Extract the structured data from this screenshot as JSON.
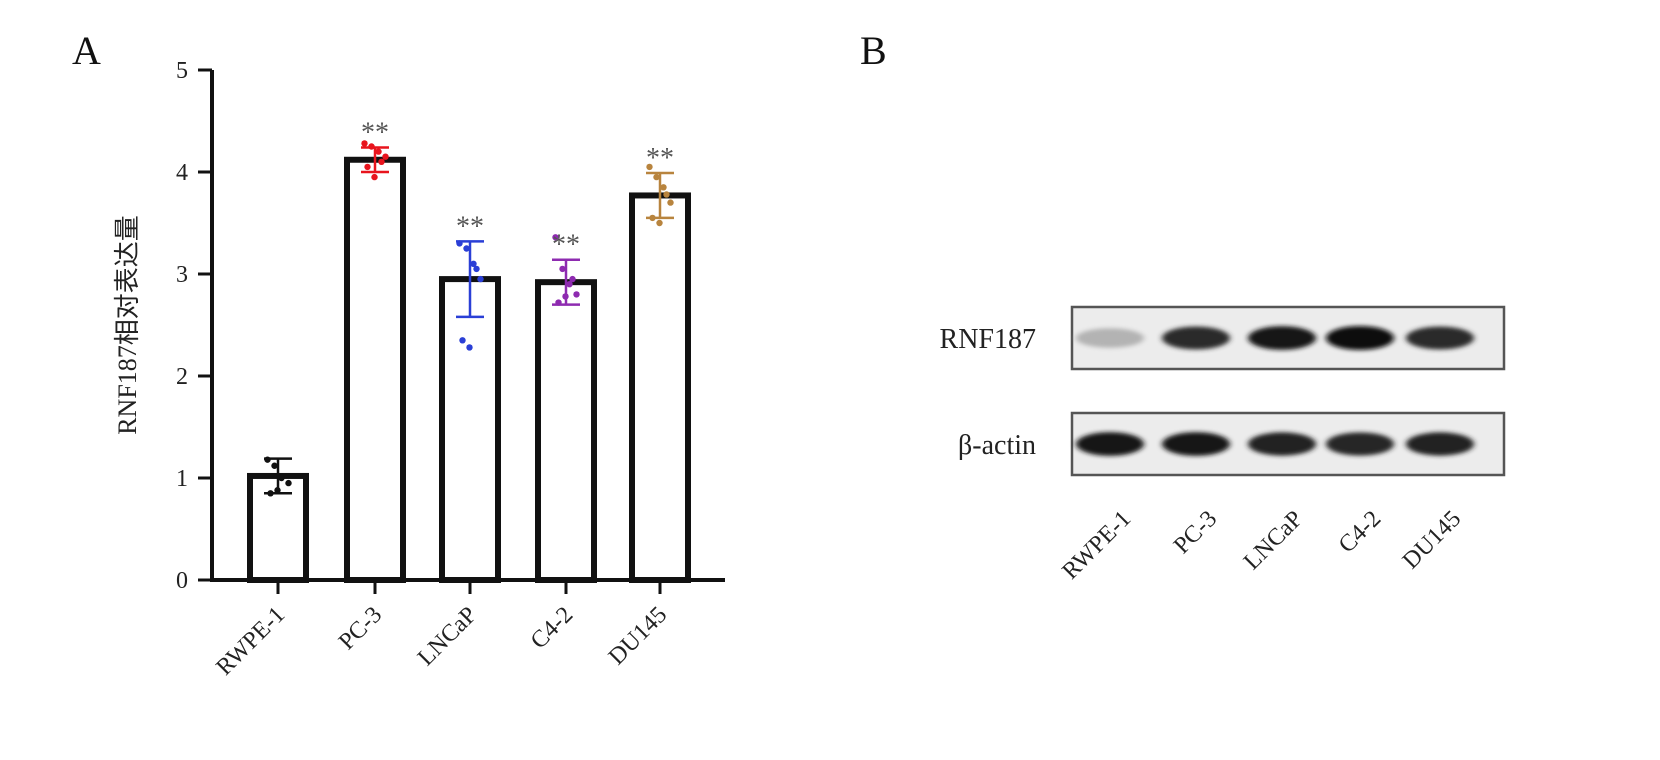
{
  "panels": {
    "a_letter": "A",
    "b_letter": "B"
  },
  "chart_data": {
    "type": "bar",
    "ylabel": "RNF187相对表达量",
    "xlabel": "",
    "ylim": [
      0,
      5
    ],
    "yticks": [
      0,
      1,
      2,
      3,
      4,
      5
    ],
    "categories": [
      "RWPE-1",
      "PC-3",
      "LNCaP",
      "C4-2",
      "DU145"
    ],
    "values": [
      1.02,
      4.12,
      2.95,
      2.92,
      3.77
    ],
    "errors": [
      0.17,
      0.12,
      0.37,
      0.22,
      0.22
    ],
    "significance": [
      "",
      "**",
      "**",
      "**",
      "**"
    ],
    "point_colors": [
      "#111111",
      "#e8141d",
      "#2a3fd6",
      "#8e2bb0",
      "#b8843e"
    ],
    "points": [
      [
        1.18,
        1.12,
        1.0,
        0.95,
        0.85,
        0.88
      ],
      [
        4.28,
        4.25,
        4.2,
        4.15,
        4.05,
        3.95,
        4.1
      ],
      [
        3.3,
        3.25,
        3.1,
        2.95,
        2.35,
        2.28,
        3.05
      ],
      [
        3.36,
        3.05,
        2.9,
        2.8,
        2.72,
        2.78,
        2.95
      ],
      [
        4.05,
        3.95,
        3.85,
        3.7,
        3.55,
        3.5,
        3.78
      ]
    ],
    "grid": false,
    "legend": "none"
  },
  "blot": {
    "rows": [
      {
        "label": "RNF187",
        "intensities": [
          0.25,
          0.85,
          0.95,
          1.0,
          0.85
        ]
      },
      {
        "label": "β-actin",
        "intensities": [
          0.95,
          0.95,
          0.9,
          0.88,
          0.9
        ]
      }
    ],
    "lanes": [
      "RWPE-1",
      "PC-3",
      "LNCaP",
      "C4-2",
      "DU145"
    ]
  }
}
